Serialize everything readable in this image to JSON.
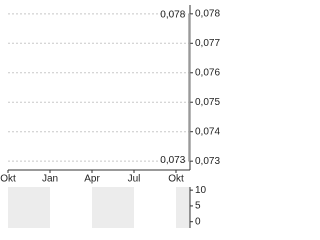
{
  "chart_data": [
    {
      "type": "line",
      "xlim": [
        0,
        13
      ],
      "xticks": [
        {
          "value": 0,
          "label": "Okt"
        },
        {
          "value": 3,
          "label": "Jan"
        },
        {
          "value": 6,
          "label": "Apr"
        },
        {
          "value": 9,
          "label": "Jul"
        },
        {
          "value": 12,
          "label": "Okt"
        }
      ],
      "ylim": [
        0.0727,
        0.0783
      ],
      "yticks": [
        {
          "value": 0.073,
          "label": "0,073"
        },
        {
          "value": 0.074,
          "label": "0,074"
        },
        {
          "value": 0.075,
          "label": "0,075"
        },
        {
          "value": 0.076,
          "label": "0,076"
        },
        {
          "value": 0.077,
          "label": "0,077"
        },
        {
          "value": 0.078,
          "label": "0,078"
        }
      ],
      "grid": true,
      "series": [
        {
          "color": "#999999",
          "x": [
            12.95,
            12.95
          ],
          "values": [
            0.073,
            0.078
          ],
          "value_labels": [
            "0,073",
            "0,078"
          ]
        }
      ]
    },
    {
      "type": "bar",
      "ylim": [
        -2,
        11
      ],
      "yticks": [
        0,
        5,
        10
      ]
    }
  ]
}
